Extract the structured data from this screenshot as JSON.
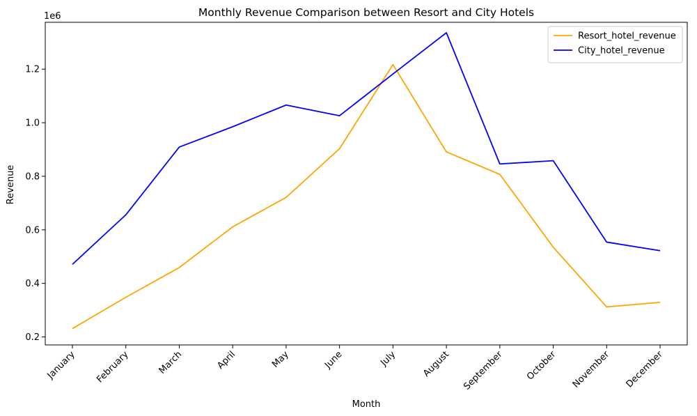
{
  "chart_data": {
    "type": "line",
    "title": "Monthly Revenue Comparison between Resort and City Hotels",
    "xlabel": "Month",
    "ylabel": "Revenue",
    "y_offset_text": "1e6",
    "categories": [
      "January",
      "February",
      "March",
      "April",
      "May",
      "June",
      "July",
      "August",
      "September",
      "October",
      "November",
      "December"
    ],
    "ylim": [
      0.17,
      1.375
    ],
    "yticks": [
      0.2,
      0.4,
      0.6,
      0.8,
      1.0,
      1.2
    ],
    "ytick_labels": [
      "0.2",
      "0.4",
      "0.6",
      "0.8",
      "1.0",
      "1.2"
    ],
    "y_scale_factor": 1000000,
    "grid": false,
    "legend_position": "top-right",
    "series": [
      {
        "name": "Resort_hotel_revenue",
        "color": "#FFA500",
        "values": [
          0.231,
          0.348,
          0.459,
          0.611,
          0.721,
          0.903,
          1.217,
          0.891,
          0.807,
          0.535,
          0.312,
          0.329
        ]
      },
      {
        "name": "City_hotel_revenue",
        "color": "#0000FF",
        "values": [
          0.471,
          0.656,
          0.909,
          0.985,
          1.066,
          1.026,
          1.182,
          1.336,
          0.846,
          0.858,
          0.554,
          0.522
        ]
      }
    ]
  }
}
